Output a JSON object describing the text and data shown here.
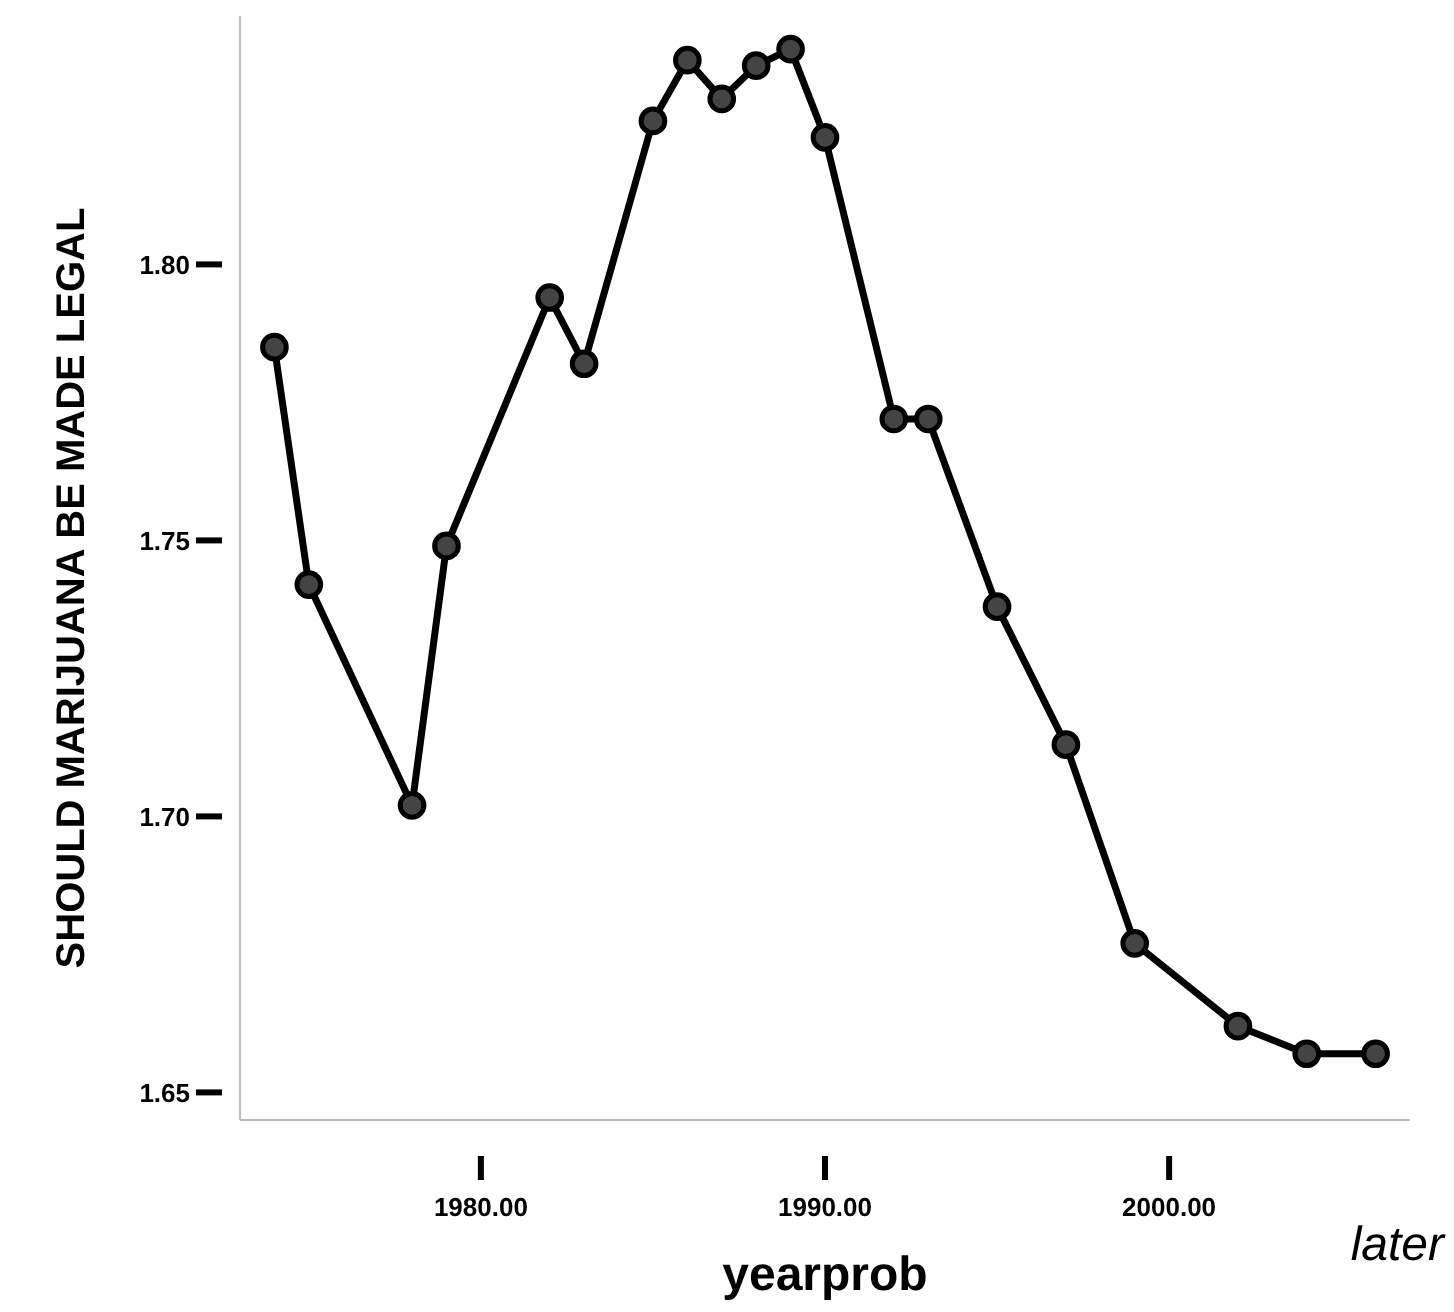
{
  "chart_data": {
    "type": "line",
    "xlabel": "yearprob",
    "ylabel": "SHOULD MARIJUANA BE MADE LEGAL",
    "x": [
      1974,
      1975,
      1978,
      1979,
      1982,
      1983,
      1985,
      1986,
      1987,
      1988,
      1989,
      1990,
      1992,
      1993,
      1995,
      1997,
      1999,
      2002,
      2004,
      2006
    ],
    "series": [
      {
        "color": "#000000",
        "values": [
          1.785,
          1.742,
          1.702,
          1.749,
          1.794,
          1.782,
          1.826,
          1.837,
          1.83,
          1.836,
          1.839,
          1.823,
          1.772,
          1.772,
          1.738,
          1.713,
          1.677,
          1.662,
          1.657,
          1.657
        ]
      }
    ],
    "xticks": [
      {
        "value": 1980,
        "label": "1980.00"
      },
      {
        "value": 1990,
        "label": "1990.00"
      },
      {
        "value": 2000,
        "label": "2000.00"
      }
    ],
    "yticks": [
      {
        "value": 1.65,
        "label": "1.65"
      },
      {
        "value": 1.7,
        "label": "1.70"
      },
      {
        "value": 1.75,
        "label": "1.75"
      },
      {
        "value": 1.8,
        "label": "1.80"
      }
    ],
    "xlim": [
      1973,
      2007
    ],
    "ylim": [
      1.645,
      1.845
    ],
    "marker": "circle",
    "line_style": "solid",
    "grid": false,
    "annotations": [
      "later"
    ]
  }
}
